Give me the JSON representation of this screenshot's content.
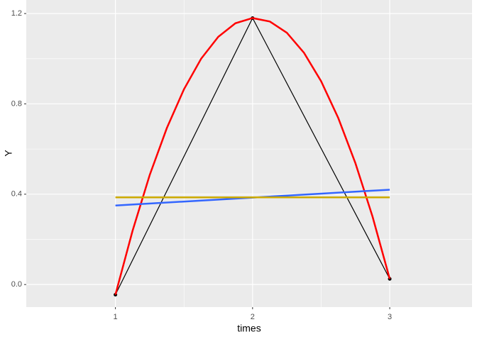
{
  "chart_data": {
    "type": "line",
    "xlabel": "times",
    "ylabel": "Y",
    "xlim": [
      0.35,
      3.6
    ],
    "ylim": [
      -0.1,
      1.26
    ],
    "xticks": [
      1,
      2,
      3
    ],
    "yticks": [
      {
        "value": 0,
        "label": "0.0"
      },
      0.4,
      0.8,
      1.2
    ],
    "x_minor_grid": [
      1.5,
      2.5
    ],
    "y_minor_grid": [
      0.2,
      0.6,
      1.0
    ],
    "grid": true,
    "series": [
      {
        "color": "#000000",
        "width": 1.2,
        "markers": true,
        "x": [
          1,
          2,
          3
        ],
        "values": [
          -0.045,
          1.18,
          0.025
        ]
      },
      {
        "color": "#ff0000",
        "width": 2.5,
        "markers": false,
        "x": [
          1,
          1.125,
          1.25,
          1.375,
          1.5,
          1.625,
          1.75,
          1.875,
          2,
          2.125,
          2.25,
          2.375,
          2.5,
          2.625,
          2.75,
          2.875,
          3
        ],
        "values": [
          -0.045,
          0.238,
          0.485,
          0.693,
          0.865,
          1.0,
          1.097,
          1.157,
          1.18,
          1.165,
          1.115,
          1.026,
          0.9,
          0.737,
          0.537,
          0.3,
          0.025
        ]
      },
      {
        "color": "#3366ff",
        "width": 2.5,
        "markers": false,
        "x": [
          1,
          3
        ],
        "values": [
          0.35,
          0.42
        ]
      },
      {
        "color": "#ccaa00",
        "width": 2.5,
        "markers": false,
        "x": [
          1,
          3
        ],
        "values": [
          0.386,
          0.386
        ]
      }
    ]
  }
}
